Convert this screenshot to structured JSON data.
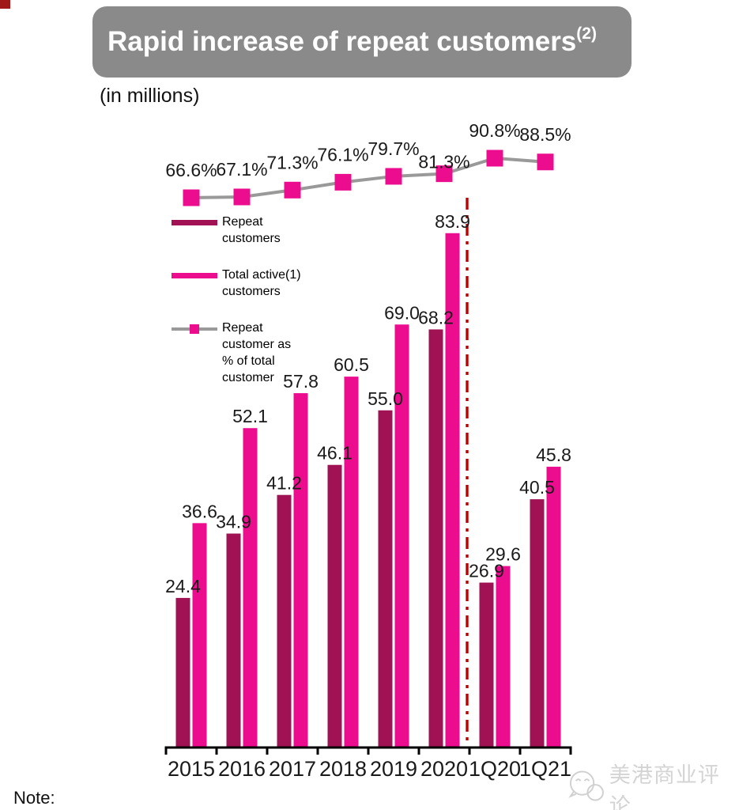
{
  "header": {
    "title": "Rapid increase of repeat customers",
    "footnote_ref": "(2)"
  },
  "subtitle": "(in millions)",
  "note_label": "Note:",
  "watermark": {
    "text": "美港商业评论",
    "logo": "chat-bubbles-logo"
  },
  "colors": {
    "bar_repeat": "#A01253",
    "bar_total": "#EC0C8E",
    "pct_line": "#999999",
    "pct_marker": "#EC0C8E",
    "divider": "#C00000",
    "banner_bg": "#8A8A8A",
    "banner_text": "#FFFFFF",
    "axis": "#000000",
    "label_text": "#1A1A1A",
    "watermark_gray": "#D4D4D4"
  },
  "legend": {
    "items": [
      {
        "label": "Repeat\ncustomers",
        "swatch": "repeat-bar"
      },
      {
        "label": "Total active(1)\ncustomers",
        "swatch": "total-bar"
      },
      {
        "label": "Repeat\ncustomer as\n% of total\ncustomer",
        "swatch": "pct-line"
      }
    ]
  },
  "chart_data": {
    "type": "bar",
    "title": "Rapid increase of repeat customers(2)",
    "unit_label": "(in millions)",
    "categories": [
      "2015",
      "2016",
      "2017",
      "2018",
      "2019",
      "2020",
      "1Q20",
      "1Q21"
    ],
    "series": [
      {
        "name": "Repeat customers",
        "color": "#A01253",
        "values": [
          24.4,
          34.9,
          41.2,
          46.1,
          55.0,
          68.2,
          26.9,
          40.5
        ]
      },
      {
        "name": "Total active customers",
        "color": "#EC0C8E",
        "values": [
          36.6,
          52.1,
          57.8,
          60.5,
          69.0,
          83.9,
          29.6,
          45.8
        ]
      }
    ],
    "line_series": {
      "name": "Repeat customer as % of total customer",
      "unit": "%",
      "values": [
        66.6,
        67.1,
        71.3,
        76.1,
        79.7,
        81.3,
        90.8,
        88.5
      ],
      "line_color": "#999999",
      "marker_color": "#EC0C8E"
    },
    "divider_between": [
      "2020",
      "1Q20"
    ],
    "value_labels_decimals": 1,
    "ylim": [
      0,
      90
    ],
    "grid": false,
    "legend_position": "upper-left-inside"
  }
}
